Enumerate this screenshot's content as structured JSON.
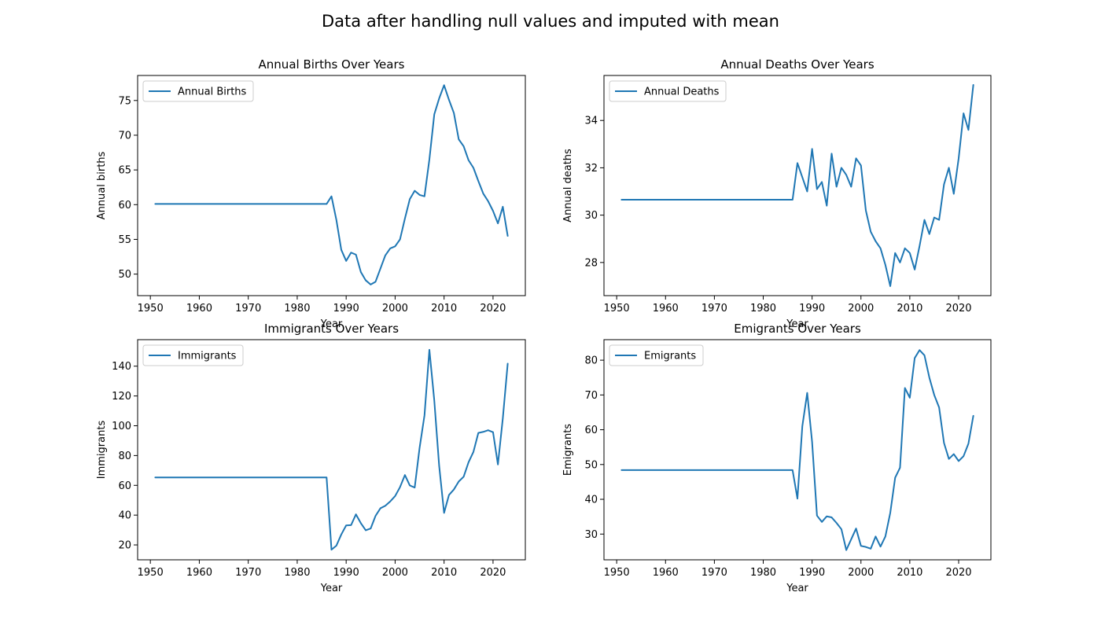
{
  "figure": {
    "suptitle": "Data after handling null values and imputed with mean",
    "line_color": "#1f77b4"
  },
  "chart_data": [
    {
      "type": "line",
      "title": "Annual Births Over Years",
      "xlabel": "Year",
      "ylabel": "Annual births",
      "legend": "top-left",
      "grid": false,
      "xlim": [
        1947.4,
        2026.6
      ],
      "ylim": [
        46.9,
        78.6
      ],
      "xticks": [
        1950,
        1960,
        1970,
        1980,
        1990,
        2000,
        2010,
        2020
      ],
      "yticks": [
        50,
        55,
        60,
        65,
        70,
        75
      ],
      "series": [
        {
          "name": "Annual Births",
          "x": [
            1951,
            1986,
            1987,
            1988,
            1989,
            1990,
            1991,
            1992,
            1993,
            1994,
            1995,
            1996,
            1997,
            1998,
            1999,
            2000,
            2001,
            2002,
            2003,
            2004,
            2005,
            2006,
            2007,
            2008,
            2009,
            2010,
            2011,
            2012,
            2013,
            2014,
            2015,
            2016,
            2017,
            2018,
            2019,
            2020,
            2021,
            2022,
            2023
          ],
          "y": [
            60.1,
            60.1,
            61.2,
            57.8,
            53.5,
            51.9,
            53.1,
            52.8,
            50.3,
            49.1,
            48.5,
            48.9,
            50.8,
            52.7,
            53.7,
            54.0,
            55.0,
            58.0,
            60.8,
            62.0,
            61.4,
            61.2,
            66.5,
            73.0,
            75.3,
            77.2,
            75.1,
            73.2,
            69.4,
            68.4,
            66.4,
            65.3,
            63.4,
            61.6,
            60.5,
            59.1,
            57.3,
            59.7,
            55.5
          ]
        }
      ]
    },
    {
      "type": "line",
      "title": "Annual Deaths Over Years",
      "xlabel": "Year",
      "ylabel": "Annual deaths",
      "legend": "top-left",
      "grid": false,
      "xlim": [
        1947.4,
        2026.6
      ],
      "ylim": [
        26.6,
        35.9
      ],
      "xticks": [
        1950,
        1960,
        1970,
        1980,
        1990,
        2000,
        2010,
        2020
      ],
      "yticks": [
        28,
        30,
        32,
        34
      ],
      "series": [
        {
          "name": "Annual Deaths",
          "x": [
            1951,
            1986,
            1987,
            1988,
            1989,
            1990,
            1991,
            1992,
            1993,
            1994,
            1995,
            1996,
            1997,
            1998,
            1999,
            2000,
            2001,
            2002,
            2003,
            2004,
            2005,
            2006,
            2007,
            2008,
            2009,
            2010,
            2011,
            2012,
            2013,
            2014,
            2015,
            2016,
            2017,
            2018,
            2019,
            2020,
            2021,
            2022,
            2023
          ],
          "y": [
            30.65,
            30.65,
            32.2,
            31.6,
            31.0,
            32.8,
            31.1,
            31.4,
            30.4,
            32.6,
            31.2,
            32.0,
            31.7,
            31.2,
            32.4,
            32.1,
            30.2,
            29.3,
            28.9,
            28.6,
            27.9,
            27.0,
            28.4,
            28.0,
            28.6,
            28.4,
            27.7,
            28.7,
            29.8,
            29.2,
            29.9,
            29.8,
            31.3,
            32.0,
            30.9,
            32.4,
            34.3,
            33.6,
            35.5
          ]
        }
      ]
    },
    {
      "type": "line",
      "title": "Immigrants Over Years",
      "xlabel": "Year",
      "ylabel": "Immigrants",
      "legend": "top-left",
      "grid": false,
      "xlim": [
        1947.4,
        2026.6
      ],
      "ylim": [
        10.0,
        157.8
      ],
      "xticks": [
        1950,
        1960,
        1970,
        1980,
        1990,
        2000,
        2010,
        2020
      ],
      "yticks": [
        20,
        40,
        60,
        80,
        100,
        120,
        140
      ],
      "series": [
        {
          "name": "Immigrants",
          "x": [
            1951,
            1986,
            1987,
            1988,
            1989,
            1990,
            1991,
            1992,
            1993,
            1994,
            1995,
            1996,
            1997,
            1998,
            1999,
            2000,
            2001,
            2002,
            2003,
            2004,
            2005,
            2006,
            2007,
            2008,
            2009,
            2010,
            2011,
            2012,
            2013,
            2014,
            2015,
            2016,
            2017,
            2018,
            2019,
            2020,
            2021,
            2022,
            2023
          ],
          "y": [
            65.3,
            65.3,
            16.8,
            19.5,
            27.0,
            33.1,
            33.3,
            40.5,
            34.6,
            29.8,
            31.0,
            39.5,
            44.6,
            46.3,
            49.2,
            52.8,
            58.8,
            66.9,
            59.9,
            58.5,
            85.2,
            107.0,
            151.0,
            117.0,
            73.0,
            41.5,
            53.5,
            57.2,
            62.6,
            65.8,
            75.5,
            82.5,
            95.2,
            95.9,
            97.0,
            95.7,
            74.0,
            105.0,
            141.7
          ]
        }
      ]
    },
    {
      "type": "line",
      "title": "Emigrants Over Years",
      "xlabel": "Year",
      "ylabel": "Emigrants",
      "legend": "top-left",
      "grid": false,
      "xlim": [
        1947.4,
        2026.6
      ],
      "ylim": [
        22.6,
        85.9
      ],
      "xticks": [
        1950,
        1960,
        1970,
        1980,
        1990,
        2000,
        2010,
        2020
      ],
      "yticks": [
        30,
        40,
        50,
        60,
        70,
        80
      ],
      "series": [
        {
          "name": "Emigrants",
          "x": [
            1951,
            1986,
            1987,
            1988,
            1989,
            1990,
            1991,
            1992,
            1993,
            1994,
            1995,
            1996,
            1997,
            1998,
            1999,
            2000,
            2001,
            2002,
            2003,
            2004,
            2005,
            2006,
            2007,
            2008,
            2009,
            2010,
            2011,
            2012,
            2013,
            2014,
            2015,
            2016,
            2017,
            2018,
            2019,
            2020,
            2021,
            2022,
            2023
          ],
          "y": [
            48.4,
            48.4,
            40.2,
            61.0,
            70.6,
            56.5,
            35.3,
            33.5,
            35.1,
            34.8,
            33.2,
            31.4,
            25.4,
            28.5,
            31.6,
            26.6,
            26.3,
            25.8,
            29.3,
            26.4,
            29.3,
            36.1,
            46.2,
            49.1,
            72.0,
            69.2,
            80.6,
            82.9,
            81.4,
            75.0,
            70.0,
            66.4,
            56.2,
            51.6,
            53.0,
            51.0,
            52.4,
            56.0,
            64.0
          ]
        }
      ]
    }
  ]
}
